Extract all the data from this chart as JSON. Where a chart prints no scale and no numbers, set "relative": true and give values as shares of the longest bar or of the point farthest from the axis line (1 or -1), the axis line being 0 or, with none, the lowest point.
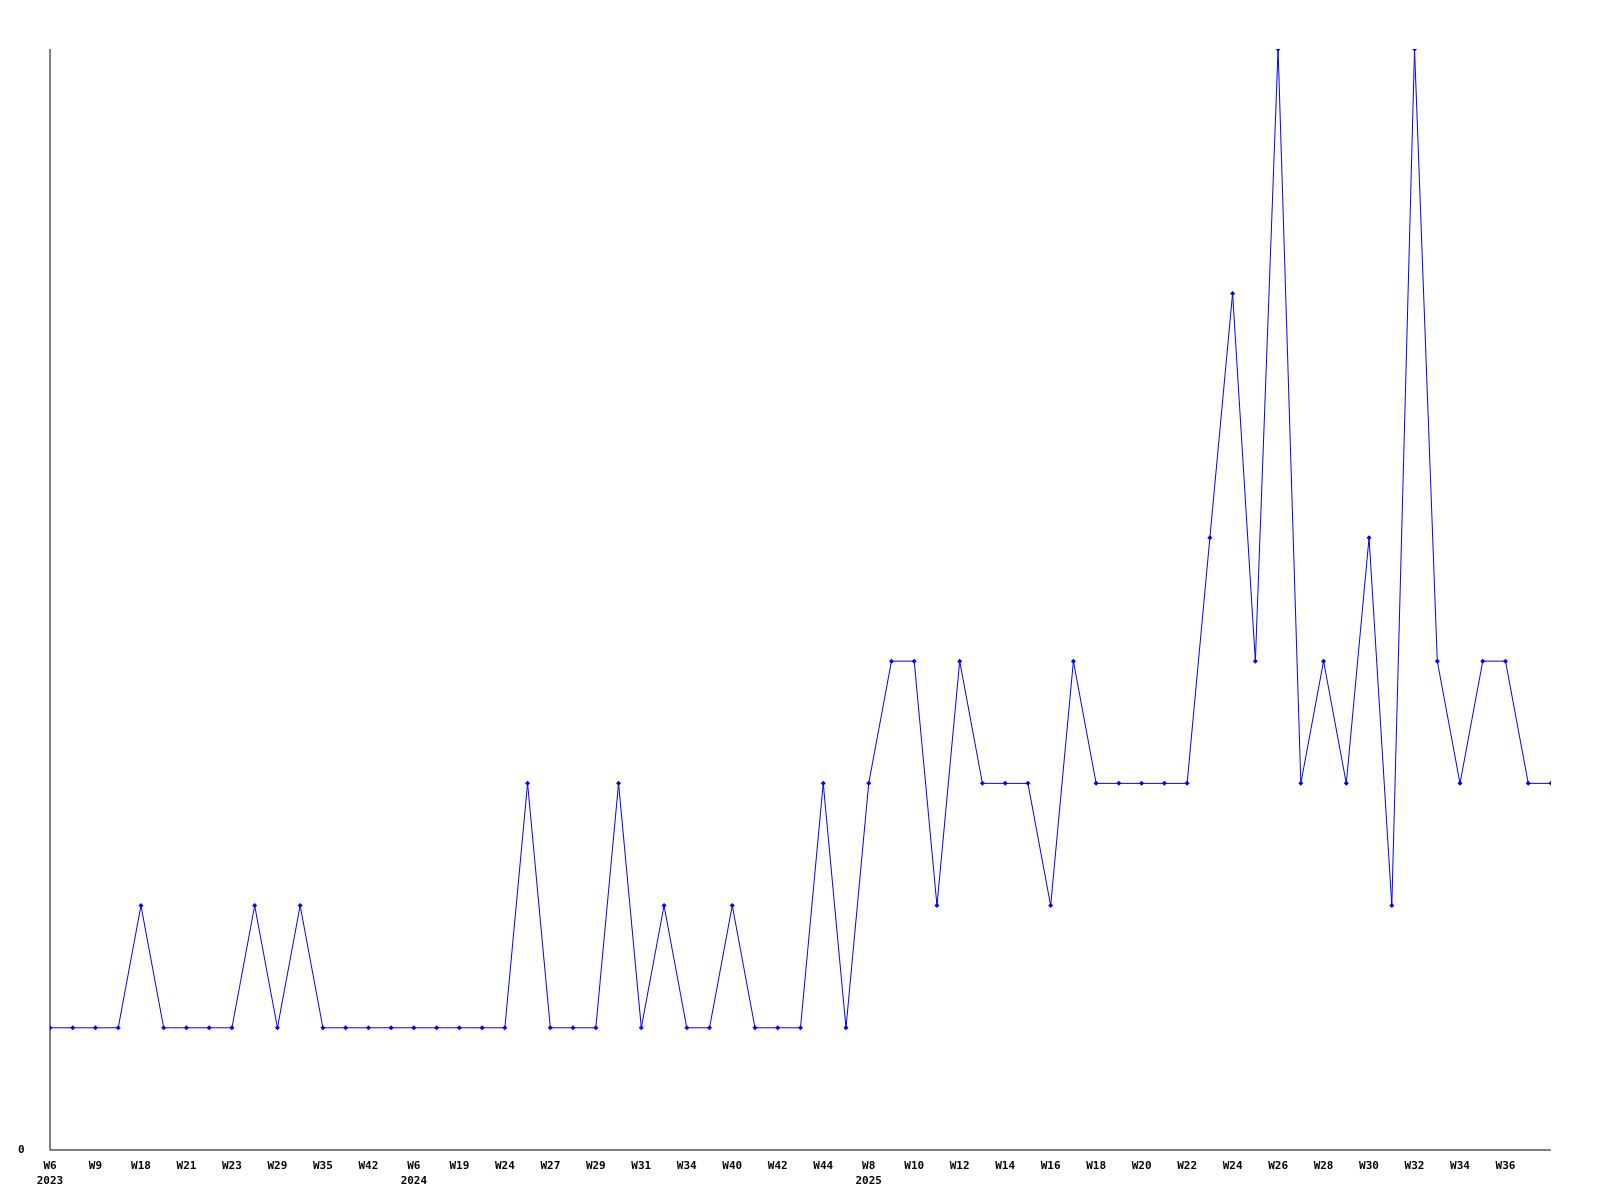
{
  "chart_data": {
    "type": "line",
    "relative": true,
    "categories": [
      "W6\n2023",
      null,
      "W9",
      null,
      "W18",
      null,
      "W21",
      null,
      "W23",
      null,
      "W29",
      null,
      "W35",
      null,
      "W42",
      null,
      "W6\n2024",
      null,
      "W19",
      null,
      "W24",
      null,
      "W27",
      null,
      "W29",
      null,
      "W31",
      null,
      "W34",
      null,
      "W40",
      null,
      "W42",
      null,
      "W44",
      null,
      "W8\n2025",
      null,
      "W10",
      null,
      "W12",
      null,
      "W14",
      null,
      "W16",
      null,
      "W18",
      null,
      "W20",
      null,
      "W22",
      null,
      "W24",
      null,
      "W26",
      null,
      "W28",
      null,
      "W30",
      null,
      "W32",
      null,
      "W34",
      null,
      "W36",
      null,
      null
    ],
    "series": [
      {
        "color": "#0000ff",
        "values": [
          0.111,
          0.111,
          0.111,
          0.111,
          0.222,
          0.111,
          0.111,
          0.111,
          0.111,
          0.222,
          0.111,
          0.222,
          0.111,
          0.111,
          0.111,
          0.111,
          0.111,
          0.111,
          0.111,
          0.111,
          0.111,
          0.333,
          0.111,
          0.111,
          0.111,
          0.333,
          0.111,
          0.222,
          0.111,
          0.111,
          0.222,
          0.111,
          0.111,
          0.111,
          0.333,
          0.111,
          0.333,
          0.444,
          0.444,
          0.222,
          0.444,
          0.333,
          0.333,
          0.333,
          0.222,
          0.444,
          0.333,
          0.333,
          0.333,
          0.333,
          0.333,
          0.556,
          0.778,
          0.444,
          1,
          0.333,
          0.444,
          0.333,
          0.556,
          0.222,
          1,
          0.444,
          0.333,
          0.444,
          0.444,
          0.333,
          0.333
        ]
      }
    ],
    "annotations": [
      "0"
    ],
    "marker": "diamond",
    "grid": false,
    "legend": false
  }
}
